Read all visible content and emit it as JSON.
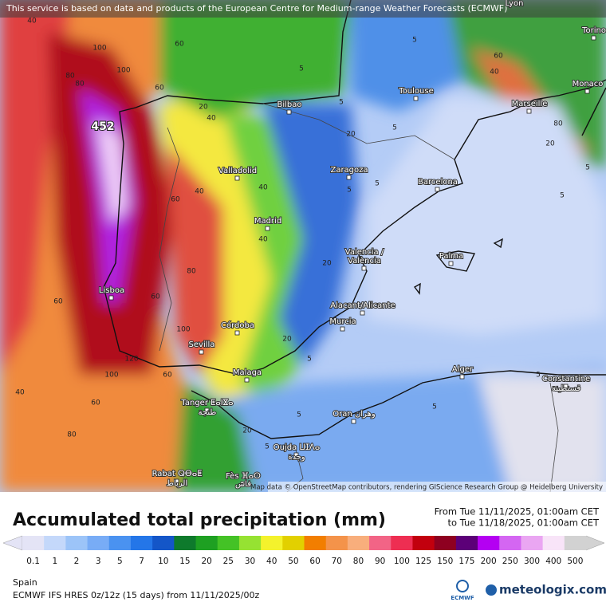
{
  "header": {
    "notice": "This service is based on data and products of the European Centre for Medium-range Weather Forecasts (ECMWF)"
  },
  "map": {
    "max_label": 452,
    "cities": [
      "Lyon",
      "Torino",
      "Monaco",
      "Marseille",
      "Toulouse",
      "Bilbao",
      "Valladolid",
      "Zaragoza",
      "Barcelona",
      "Madrid",
      "Valencia /",
      "València",
      "Palma",
      "Lisboa",
      "Alacant/Alicante",
      "Murcia",
      "Córdoba",
      "Sevilla",
      "Malaga",
      "Alger",
      "Constantine",
      "قسنطينة",
      "Tanger ⵟⴰⵏⴵⴰ",
      "طنجة",
      "Oran وهران",
      "Oujda ⵡⵊⴷⴰ",
      "وجدة",
      "Rabat ⵕⴱⴰⵟ",
      "الرباط",
      "Fès ⴼⴰⵙ",
      "فاس"
    ],
    "contour_labels": [
      40,
      60,
      100,
      80,
      80,
      100,
      60,
      20,
      40,
      5,
      5,
      20,
      40,
      20,
      5,
      5,
      40,
      60,
      80,
      60,
      100,
      40,
      20,
      5,
      5,
      5,
      60,
      80,
      60,
      40,
      100,
      120,
      60,
      20,
      5,
      5,
      5,
      40,
      60,
      80,
      5,
      5,
      20,
      5
    ],
    "attribution": "Map data © OpenStreetMap contributors, rendering GIScience Research Group @ Heidelberg University"
  },
  "footer": {
    "title": "Accumulated total precipitation (mm)",
    "period_from": "From Tue 11/11/2025, 01:00am CET",
    "period_to": "to Tue 11/18/2025, 01:00am CET",
    "region": "Spain",
    "model": "ECMWF IFS HRES 0z/12z (15 days) from 11/11/2025/00z",
    "logo_left": "ECMWF",
    "logo_right": "meteologix.com"
  },
  "legend": {
    "values": [
      0.1,
      1,
      2,
      3,
      5,
      7,
      10,
      15,
      20,
      25,
      30,
      40,
      50,
      60,
      70,
      80,
      90,
      100,
      125,
      150,
      175,
      200,
      250,
      300,
      400,
      500
    ],
    "colors": [
      "#e4e4f6",
      "#c4d8fa",
      "#9cc4f8",
      "#78acf6",
      "#4a92f0",
      "#2476e8",
      "#1456c8",
      "#0e7a2c",
      "#1ea022",
      "#44c226",
      "#96e232",
      "#f4f22c",
      "#e2d000",
      "#f27e00",
      "#f4934a",
      "#f8ae7c",
      "#f26486",
      "#ee2e52",
      "#c2000e",
      "#8e0020",
      "#5c0078",
      "#b400f2",
      "#d466f2",
      "#eaa6f2",
      "#f8e4f8",
      "#d2d2d2"
    ]
  }
}
